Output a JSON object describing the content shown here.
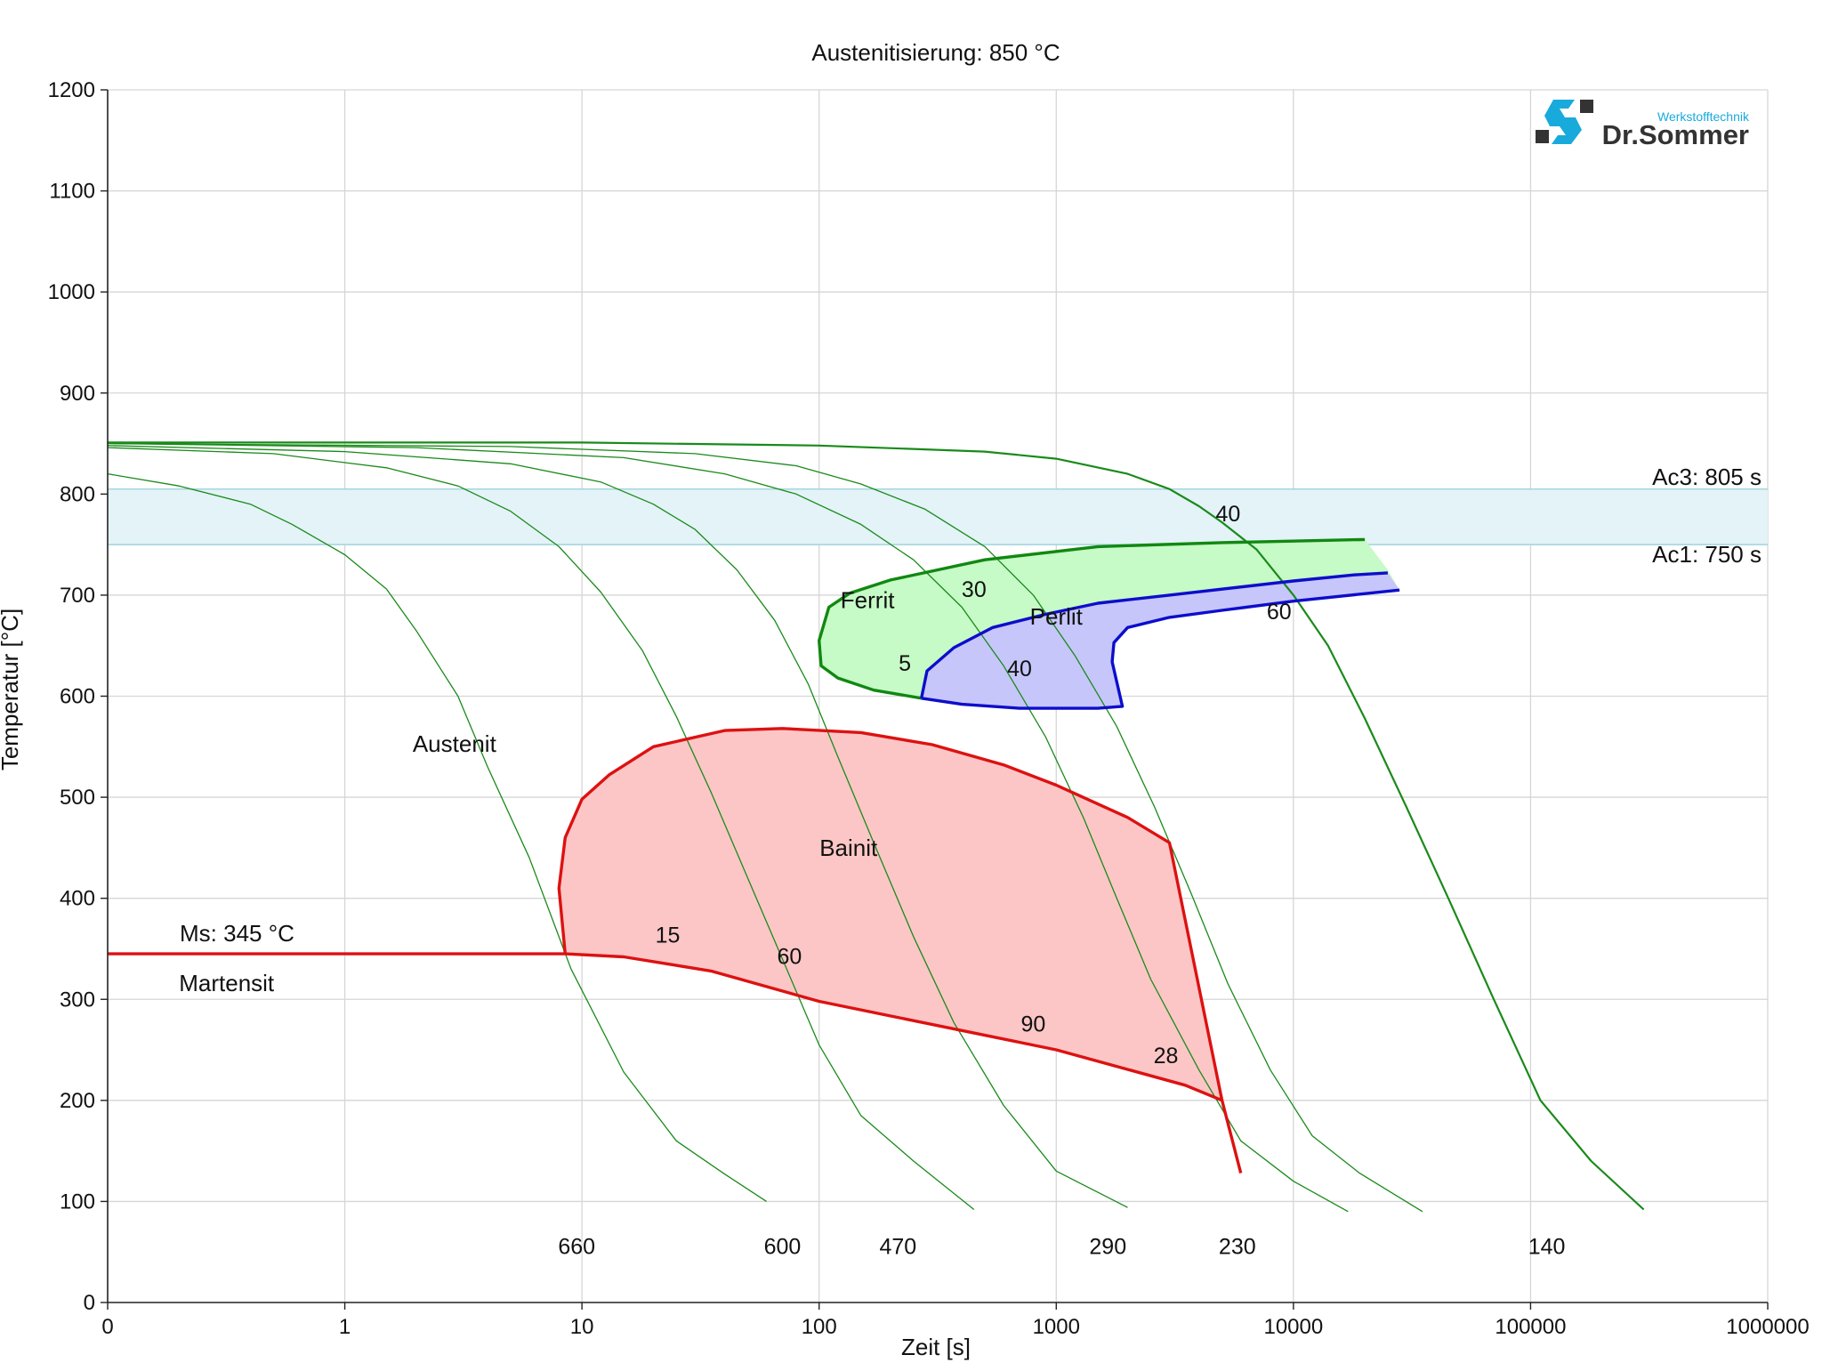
{
  "chart_data": {
    "type": "line",
    "title": "Austenitisierung: 850 °C",
    "xlabel": "Zeit [s]",
    "ylabel": "Temperatur [°C]",
    "x_scale": "log",
    "xlim": [
      0.1,
      1000000
    ],
    "ylim": [
      0,
      1200
    ],
    "grid": true,
    "x_ticks": [
      {
        "value": 0.1,
        "label": "0"
      },
      {
        "value": 1,
        "label": "1"
      },
      {
        "value": 10,
        "label": "10"
      },
      {
        "value": 100,
        "label": "100"
      },
      {
        "value": 1000,
        "label": "1000"
      },
      {
        "value": 10000,
        "label": "10000"
      },
      {
        "value": 100000,
        "label": "100000"
      },
      {
        "value": 1000000,
        "label": "1000000"
      }
    ],
    "y_ticks": [
      0,
      100,
      200,
      300,
      400,
      500,
      600,
      700,
      800,
      900,
      1000,
      1100,
      1200
    ],
    "logo": {
      "brand": "Dr.Sommer",
      "subtitle": "Werkstofftechnik"
    },
    "ac_band": {
      "ac3": {
        "value": 805,
        "label": "Ac3: 805 s"
      },
      "ac1": {
        "value": 750,
        "label": "Ac1: 750 s"
      },
      "fill_color": "#e3f3f7",
      "line_color": "#9fd3df"
    },
    "ms_line": {
      "label": "Ms: 345 °C",
      "color": "#dd1111",
      "points": [
        [
          0.1,
          345
        ],
        [
          8.5,
          345
        ],
        [
          15,
          342
        ],
        [
          35,
          328
        ],
        [
          100,
          298
        ],
        [
          1000,
          250
        ],
        [
          3500,
          215
        ],
        [
          5000,
          200
        ],
        [
          6000,
          128
        ]
      ]
    },
    "regions": [
      {
        "name": "Ferrit",
        "fill": "#c6fac6",
        "stroke": "#118811",
        "points": [
          [
            270,
            598
          ],
          [
            170,
            606
          ],
          [
            120,
            618
          ],
          [
            102,
            630
          ],
          [
            100,
            655
          ],
          [
            110,
            688
          ],
          [
            135,
            702
          ],
          [
            200,
            715
          ],
          [
            500,
            735
          ],
          [
            1500,
            748
          ],
          [
            5000,
            752
          ],
          [
            20000,
            755
          ],
          [
            25000,
            725
          ],
          [
            28000,
            705
          ],
          [
            27000,
            703
          ],
          [
            25000,
            722
          ],
          [
            18000,
            720
          ],
          [
            10000,
            714
          ],
          [
            3000,
            700
          ],
          [
            1500,
            692
          ],
          [
            900,
            681
          ],
          [
            540,
            668
          ],
          [
            370,
            648
          ],
          [
            285,
            625
          ],
          [
            270,
            598
          ]
        ],
        "outline": [
          [
            270,
            598
          ],
          [
            170,
            606
          ],
          [
            120,
            618
          ],
          [
            102,
            630
          ],
          [
            100,
            655
          ],
          [
            110,
            688
          ],
          [
            135,
            702
          ],
          [
            200,
            715
          ],
          [
            500,
            735
          ],
          [
            1500,
            748
          ],
          [
            5000,
            752
          ],
          [
            20000,
            755
          ]
        ]
      },
      {
        "name": "Perlit",
        "fill": "#c6c6fb",
        "stroke": "#0d0dcc",
        "points": [
          [
            270,
            598
          ],
          [
            285,
            625
          ],
          [
            370,
            648
          ],
          [
            540,
            668
          ],
          [
            900,
            681
          ],
          [
            1500,
            692
          ],
          [
            3000,
            700
          ],
          [
            10000,
            714
          ],
          [
            18000,
            720
          ],
          [
            25000,
            722
          ],
          [
            28000,
            705
          ],
          [
            10000,
            694
          ],
          [
            5000,
            685
          ],
          [
            3000,
            678
          ],
          [
            2000,
            668
          ],
          [
            1750,
            653
          ],
          [
            1720,
            634
          ],
          [
            1900,
            590
          ],
          [
            1500,
            588
          ],
          [
            700,
            588
          ],
          [
            400,
            592
          ],
          [
            270,
            598
          ]
        ],
        "outline": [
          [
            270,
            598
          ],
          [
            285,
            625
          ],
          [
            370,
            648
          ],
          [
            540,
            668
          ],
          [
            900,
            681
          ],
          [
            1500,
            692
          ],
          [
            3000,
            700
          ],
          [
            10000,
            714
          ],
          [
            18000,
            720
          ],
          [
            25000,
            722
          ]
        ],
        "outline2": [
          [
            28000,
            705
          ],
          [
            10000,
            694
          ],
          [
            5000,
            685
          ],
          [
            3000,
            678
          ],
          [
            2000,
            668
          ],
          [
            1750,
            653
          ],
          [
            1720,
            634
          ],
          [
            1900,
            590
          ],
          [
            1500,
            588
          ],
          [
            700,
            588
          ],
          [
            400,
            592
          ],
          [
            270,
            598
          ]
        ]
      },
      {
        "name": "Bainit",
        "fill": "#fcc6c6",
        "stroke": "#dd1111",
        "points": [
          [
            8.5,
            345
          ],
          [
            8.0,
            410
          ],
          [
            8.5,
            460
          ],
          [
            10,
            498
          ],
          [
            13,
            522
          ],
          [
            20,
            550
          ],
          [
            40,
            566
          ],
          [
            70,
            568
          ],
          [
            150,
            564
          ],
          [
            300,
            552
          ],
          [
            600,
            532
          ],
          [
            1000,
            512
          ],
          [
            2000,
            480
          ],
          [
            3000,
            455
          ],
          [
            5000,
            200
          ],
          [
            3500,
            215
          ],
          [
            1000,
            250
          ],
          [
            100,
            298
          ],
          [
            35,
            328
          ],
          [
            15,
            342
          ],
          [
            8.5,
            345
          ]
        ],
        "outline": [
          [
            8.5,
            345
          ],
          [
            8.0,
            410
          ],
          [
            8.5,
            460
          ],
          [
            10,
            498
          ],
          [
            13,
            522
          ],
          [
            20,
            550
          ],
          [
            40,
            566
          ],
          [
            70,
            568
          ],
          [
            150,
            564
          ],
          [
            300,
            552
          ],
          [
            600,
            532
          ],
          [
            1000,
            512
          ],
          [
            2000,
            480
          ],
          [
            3000,
            455
          ],
          [
            5000,
            200
          ]
        ]
      }
    ],
    "region_labels": [
      {
        "text": "Austenit",
        "x": 2.9,
        "y": 545
      },
      {
        "text": "Ferrit",
        "x": 160,
        "y": 687
      },
      {
        "text": "Perlit",
        "x": 1000,
        "y": 671
      },
      {
        "text": "Bainit",
        "x": 133,
        "y": 442
      },
      {
        "text": "Martensit",
        "x": 0.2,
        "y": 308
      }
    ],
    "series": [
      {
        "hardness": "660",
        "points": [
          [
            0.1,
            820
          ],
          [
            0.2,
            808
          ],
          [
            0.4,
            790
          ],
          [
            0.6,
            770
          ],
          [
            1,
            740
          ],
          [
            1.5,
            706
          ],
          [
            2,
            665
          ],
          [
            3,
            600
          ],
          [
            4,
            530
          ],
          [
            6,
            440
          ],
          [
            9,
            330
          ],
          [
            15,
            228
          ],
          [
            25,
            160
          ],
          [
            40,
            127
          ],
          [
            60,
            100
          ]
        ]
      },
      {
        "hardness": "600",
        "points": [
          [
            0.1,
            846
          ],
          [
            0.5,
            840
          ],
          [
            1.5,
            826
          ],
          [
            3,
            808
          ],
          [
            5,
            783
          ],
          [
            8,
            748
          ],
          [
            12,
            703
          ],
          [
            18,
            645
          ],
          [
            25,
            580
          ],
          [
            35,
            505
          ],
          [
            50,
            420
          ],
          [
            70,
            340
          ],
          [
            100,
            255
          ],
          [
            150,
            185
          ],
          [
            250,
            140
          ],
          [
            450,
            92
          ]
        ]
      },
      {
        "hardness": "470",
        "points": [
          [
            0.1,
            848
          ],
          [
            1,
            842
          ],
          [
            5,
            830
          ],
          [
            12,
            812
          ],
          [
            20,
            790
          ],
          [
            30,
            765
          ],
          [
            45,
            725
          ],
          [
            65,
            675
          ],
          [
            90,
            612
          ],
          [
            120,
            540
          ],
          [
            170,
            455
          ],
          [
            250,
            362
          ],
          [
            370,
            277
          ],
          [
            600,
            195
          ],
          [
            1000,
            130
          ],
          [
            2000,
            94
          ]
        ]
      },
      {
        "hardness": "290",
        "points": [
          [
            0.1,
            850
          ],
          [
            2,
            846
          ],
          [
            15,
            836
          ],
          [
            40,
            820
          ],
          [
            80,
            800
          ],
          [
            150,
            770
          ],
          [
            250,
            735
          ],
          [
            400,
            688
          ],
          [
            600,
            630
          ],
          [
            900,
            560
          ],
          [
            1300,
            480
          ],
          [
            1800,
            400
          ],
          [
            2500,
            320
          ],
          [
            4000,
            230
          ],
          [
            6000,
            160
          ],
          [
            10000,
            120
          ],
          [
            17000,
            90
          ]
        ]
      },
      {
        "hardness": "230",
        "points": [
          [
            0.1,
            850
          ],
          [
            5,
            847
          ],
          [
            30,
            840
          ],
          [
            80,
            828
          ],
          [
            150,
            810
          ],
          [
            280,
            785
          ],
          [
            500,
            748
          ],
          [
            800,
            700
          ],
          [
            1200,
            640
          ],
          [
            1800,
            570
          ],
          [
            2600,
            490
          ],
          [
            3700,
            405
          ],
          [
            5300,
            315
          ],
          [
            8000,
            230
          ],
          [
            12000,
            165
          ],
          [
            19000,
            128
          ],
          [
            35000,
            90
          ]
        ]
      },
      {
        "hardness": "140",
        "points": [
          [
            0.1,
            851
          ],
          [
            10,
            851
          ],
          [
            100,
            848
          ],
          [
            500,
            842
          ],
          [
            1000,
            835
          ],
          [
            2000,
            820
          ],
          [
            3000,
            805
          ],
          [
            4000,
            788
          ],
          [
            5000,
            772
          ],
          [
            7000,
            745
          ],
          [
            10000,
            700
          ],
          [
            14000,
            650
          ],
          [
            20000,
            578
          ],
          [
            30000,
            490
          ],
          [
            45000,
            400
          ],
          [
            70000,
            300
          ],
          [
            110000,
            200
          ],
          [
            180000,
            140
          ],
          [
            300000,
            92
          ]
        ]
      }
    ],
    "curve_labels": [
      {
        "text": "660",
        "x": 9.5,
        "y": 48
      },
      {
        "text": "600",
        "x": 70,
        "y": 48
      },
      {
        "text": "470",
        "x": 215,
        "y": 48
      },
      {
        "text": "290",
        "x": 1650,
        "y": 48
      },
      {
        "text": "230",
        "x": 5800,
        "y": 48
      },
      {
        "text": "140",
        "x": 117000,
        "y": 48
      },
      {
        "text": "40",
        "x": 5300,
        "y": 773
      },
      {
        "text": "30",
        "x": 450,
        "y": 698
      },
      {
        "text": "5",
        "x": 230,
        "y": 625
      },
      {
        "text": "40",
        "x": 700,
        "y": 620
      },
      {
        "text": "60",
        "x": 8700,
        "y": 676
      },
      {
        "text": "15",
        "x": 23,
        "y": 356
      },
      {
        "text": "60",
        "x": 75,
        "y": 335
      },
      {
        "text": "90",
        "x": 800,
        "y": 268
      },
      {
        "text": "28",
        "x": 2900,
        "y": 237
      }
    ],
    "colors": {
      "cooling_curve": "#1a8a1a",
      "ferrit": "#118811",
      "perlit": "#0d0dcc",
      "bainit": "#dd1111",
      "logo_blue": "#19aadc",
      "logo_dark": "#333333"
    }
  }
}
